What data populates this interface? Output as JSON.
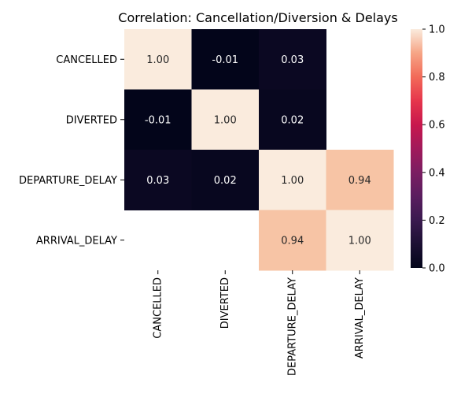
{
  "chart_data": {
    "type": "heatmap",
    "title": "Correlation: Cancellation/Diversion & Delays",
    "rows": [
      "CANCELLED",
      "DIVERTED",
      "DEPARTURE_DELAY",
      "ARRIVAL_DELAY"
    ],
    "columns": [
      "CANCELLED",
      "DIVERTED",
      "DEPARTURE_DELAY",
      "ARRIVAL_DELAY"
    ],
    "values": [
      [
        1.0,
        -0.01,
        0.03,
        null
      ],
      [
        -0.01,
        1.0,
        0.02,
        null
      ],
      [
        0.03,
        0.02,
        1.0,
        0.94
      ],
      [
        null,
        null,
        0.94,
        1.0
      ]
    ],
    "value_labels": [
      [
        "1.00",
        "-0.01",
        "0.03",
        ""
      ],
      [
        "-0.01",
        "1.00",
        "0.02",
        ""
      ],
      [
        "0.03",
        "0.02",
        "1.00",
        "0.94"
      ],
      [
        "",
        "",
        "0.94",
        "1.00"
      ]
    ],
    "colormap": "rocket",
    "colorbar": {
      "range": [
        0.0,
        1.0
      ],
      "ticks": [
        0.0,
        0.2,
        0.4,
        0.6,
        0.8,
        1.0
      ],
      "tick_labels": [
        "0.0",
        "0.2",
        "0.4",
        "0.6",
        "0.8",
        "1.0"
      ]
    }
  }
}
